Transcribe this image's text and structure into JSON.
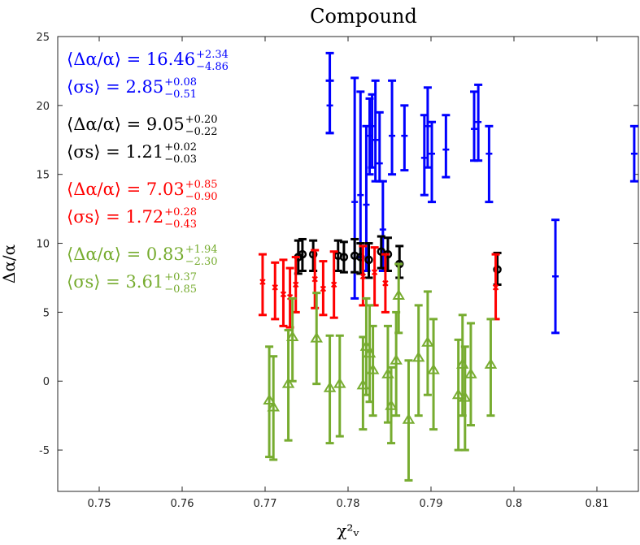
{
  "chart_data": {
    "type": "scatter",
    "title": "Compound",
    "xlabel": "χ²ᵥ",
    "ylabel": "Δα/α",
    "xlim": [
      0.745,
      0.815
    ],
    "ylim": [
      -8,
      25
    ],
    "xticks": [
      0.75,
      0.76,
      0.77,
      0.78,
      0.79,
      0.8,
      0.81
    ],
    "xtick_labels": [
      "0.75",
      "0.76",
      "0.77",
      "0.78",
      "0.79",
      "0.8",
      "0.81"
    ],
    "yticks": [
      -5,
      0,
      5,
      10,
      15,
      20,
      25
    ],
    "ytick_labels": [
      "-5",
      "0",
      "5",
      "10",
      "15",
      "20",
      "25"
    ],
    "grid": false,
    "annotations": [
      {
        "lines": [
          "⟨Δα/α⟩ = 16.46 +2.34 −4.86",
          "⟨σs⟩ = 2.85 +0.08 −0.51"
        ],
        "color": "#0000ff"
      },
      {
        "lines": [
          "⟨Δα/α⟩ = 9.05 +0.20 −0.22",
          "⟨σs⟩ = 1.21 +0.02 −0.03"
        ],
        "color": "#000000"
      },
      {
        "lines": [
          "⟨Δα/α⟩ = 7.03 +0.85 −0.90",
          "⟨σs⟩ = 1.72 +0.28 −0.43"
        ],
        "color": "#ff0000"
      },
      {
        "lines": [
          "⟨Δα/α⟩ = 0.83 +1.94 −2.30",
          "⟨σs⟩ = 3.61 +0.37 −0.85"
        ],
        "color": "#77ac30"
      }
    ],
    "series": [
      {
        "color": "#0000ff",
        "marker": "plus",
        "points": [
          {
            "x": 0.7778,
            "y": 21.8,
            "lo": 18.0,
            "hi": 23.8
          },
          {
            "x": 0.7778,
            "y": 20.0,
            "lo": 18.0,
            "hi": 21.8
          },
          {
            "x": 0.7808,
            "y": 13.0,
            "lo": 6.0,
            "hi": 22.0
          },
          {
            "x": 0.7815,
            "y": 13.5,
            "lo": 9.0,
            "hi": 21.0
          },
          {
            "x": 0.7822,
            "y": 12.8,
            "lo": 8.0,
            "hi": 18.5
          },
          {
            "x": 0.7826,
            "y": 17.8,
            "lo": 15.0,
            "hi": 20.5
          },
          {
            "x": 0.7829,
            "y": 18.5,
            "lo": 15.5,
            "hi": 20.8
          },
          {
            "x": 0.7833,
            "y": 17.5,
            "lo": 14.5,
            "hi": 21.8
          },
          {
            "x": 0.7838,
            "y": 15.8,
            "lo": 14.5,
            "hi": 19.5
          },
          {
            "x": 0.7842,
            "y": 11.0,
            "lo": 8.0,
            "hi": 14.5
          },
          {
            "x": 0.7853,
            "y": 17.8,
            "lo": 15.0,
            "hi": 21.8
          },
          {
            "x": 0.7868,
            "y": 17.8,
            "lo": 15.3,
            "hi": 20.0
          },
          {
            "x": 0.7892,
            "y": 16.2,
            "lo": 13.5,
            "hi": 19.3
          },
          {
            "x": 0.7896,
            "y": 18.5,
            "lo": 15.5,
            "hi": 21.3
          },
          {
            "x": 0.7901,
            "y": 16.5,
            "lo": 13.0,
            "hi": 18.8
          },
          {
            "x": 0.7918,
            "y": 16.8,
            "lo": 14.8,
            "hi": 19.3
          },
          {
            "x": 0.7952,
            "y": 18.3,
            "lo": 16.0,
            "hi": 21.0
          },
          {
            "x": 0.7957,
            "y": 18.8,
            "lo": 16.0,
            "hi": 21.5
          },
          {
            "x": 0.797,
            "y": 16.5,
            "lo": 13.0,
            "hi": 18.5
          },
          {
            "x": 0.805,
            "y": 7.6,
            "lo": 3.5,
            "hi": 11.7
          },
          {
            "x": 0.8145,
            "y": 16.5,
            "lo": 14.5,
            "hi": 18.5
          }
        ]
      },
      {
        "color": "#000000",
        "marker": "circle",
        "points": [
          {
            "x": 0.774,
            "y": 9.0,
            "lo": 7.8,
            "hi": 10.2
          },
          {
            "x": 0.7745,
            "y": 9.2,
            "lo": 8.0,
            "hi": 10.3
          },
          {
            "x": 0.7758,
            "y": 9.2,
            "lo": 8.0,
            "hi": 10.2
          },
          {
            "x": 0.7788,
            "y": 9.1,
            "lo": 8.0,
            "hi": 10.2
          },
          {
            "x": 0.7795,
            "y": 9.0,
            "lo": 7.9,
            "hi": 10.1
          },
          {
            "x": 0.7808,
            "y": 9.1,
            "lo": 7.9,
            "hi": 10.3
          },
          {
            "x": 0.7815,
            "y": 9.0,
            "lo": 7.8,
            "hi": 10.0
          },
          {
            "x": 0.7825,
            "y": 8.8,
            "lo": 7.5,
            "hi": 10.0
          },
          {
            "x": 0.784,
            "y": 9.4,
            "lo": 8.2,
            "hi": 10.5
          },
          {
            "x": 0.7848,
            "y": 9.2,
            "lo": 8.0,
            "hi": 10.4
          },
          {
            "x": 0.7862,
            "y": 8.5,
            "lo": 7.5,
            "hi": 9.8
          },
          {
            "x": 0.798,
            "y": 8.1,
            "lo": 7.0,
            "hi": 9.3
          }
        ]
      },
      {
        "color": "#ff0000",
        "marker": "x",
        "points": [
          {
            "x": 0.7697,
            "y": 7.2,
            "lo": 4.8,
            "hi": 9.2
          },
          {
            "x": 0.7712,
            "y": 6.8,
            "lo": 4.5,
            "hi": 8.6
          },
          {
            "x": 0.7722,
            "y": 6.3,
            "lo": 4.0,
            "hi": 8.8
          },
          {
            "x": 0.773,
            "y": 6.1,
            "lo": 3.9,
            "hi": 8.2
          },
          {
            "x": 0.7737,
            "y": 7.0,
            "lo": 5.0,
            "hi": 9.0
          },
          {
            "x": 0.776,
            "y": 7.4,
            "lo": 5.3,
            "hi": 9.5
          },
          {
            "x": 0.777,
            "y": 6.7,
            "lo": 4.8,
            "hi": 8.7
          },
          {
            "x": 0.7783,
            "y": 7.0,
            "lo": 4.6,
            "hi": 9.4
          },
          {
            "x": 0.7818,
            "y": 7.6,
            "lo": 5.5,
            "hi": 9.8
          },
          {
            "x": 0.7832,
            "y": 7.9,
            "lo": 5.5,
            "hi": 9.7
          },
          {
            "x": 0.7845,
            "y": 7.1,
            "lo": 5.0,
            "hi": 9.2
          },
          {
            "x": 0.7978,
            "y": 6.8,
            "lo": 4.5,
            "hi": 9.2
          }
        ]
      },
      {
        "color": "#77ac30",
        "marker": "triangle",
        "points": [
          {
            "x": 0.7705,
            "y": -1.4,
            "lo": -5.5,
            "hi": 2.5
          },
          {
            "x": 0.771,
            "y": -1.9,
            "lo": -5.7,
            "hi": 1.8
          },
          {
            "x": 0.7728,
            "y": -0.2,
            "lo": -4.3,
            "hi": 3.7
          },
          {
            "x": 0.7733,
            "y": 3.2,
            "lo": 0.0,
            "hi": 6.0
          },
          {
            "x": 0.7762,
            "y": 3.1,
            "lo": -0.2,
            "hi": 6.4
          },
          {
            "x": 0.7778,
            "y": -0.5,
            "lo": -4.5,
            "hi": 3.3
          },
          {
            "x": 0.779,
            "y": -0.2,
            "lo": -4.0,
            "hi": 3.3
          },
          {
            "x": 0.7818,
            "y": -0.3,
            "lo": -3.5,
            "hi": 3.2
          },
          {
            "x": 0.7822,
            "y": 2.5,
            "lo": -1.0,
            "hi": 6.0
          },
          {
            "x": 0.7826,
            "y": 2.0,
            "lo": -1.5,
            "hi": 5.5
          },
          {
            "x": 0.783,
            "y": 0.8,
            "lo": -2.5,
            "hi": 4.0
          },
          {
            "x": 0.7848,
            "y": 0.5,
            "lo": -3.0,
            "hi": 4.0
          },
          {
            "x": 0.7852,
            "y": -1.8,
            "lo": -4.5,
            "hi": 1.0
          },
          {
            "x": 0.7858,
            "y": 1.5,
            "lo": -2.5,
            "hi": 5.0
          },
          {
            "x": 0.7861,
            "y": 6.2,
            "lo": 3.5,
            "hi": 8.5
          },
          {
            "x": 0.7873,
            "y": -2.8,
            "lo": -7.2,
            "hi": 1.5
          },
          {
            "x": 0.7885,
            "y": 1.7,
            "lo": -2.5,
            "hi": 5.5
          },
          {
            "x": 0.7896,
            "y": 2.8,
            "lo": -1.0,
            "hi": 6.5
          },
          {
            "x": 0.7903,
            "y": 0.8,
            "lo": -3.5,
            "hi": 4.5
          },
          {
            "x": 0.7933,
            "y": -1.0,
            "lo": -5.0,
            "hi": 3.0
          },
          {
            "x": 0.7938,
            "y": 1.2,
            "lo": -2.5,
            "hi": 4.8
          },
          {
            "x": 0.7941,
            "y": -1.2,
            "lo": -5.0,
            "hi": 2.5
          },
          {
            "x": 0.7948,
            "y": 0.5,
            "lo": -3.2,
            "hi": 4.2
          },
          {
            "x": 0.7972,
            "y": 1.2,
            "lo": -2.5,
            "hi": 4.5
          }
        ]
      }
    ]
  }
}
